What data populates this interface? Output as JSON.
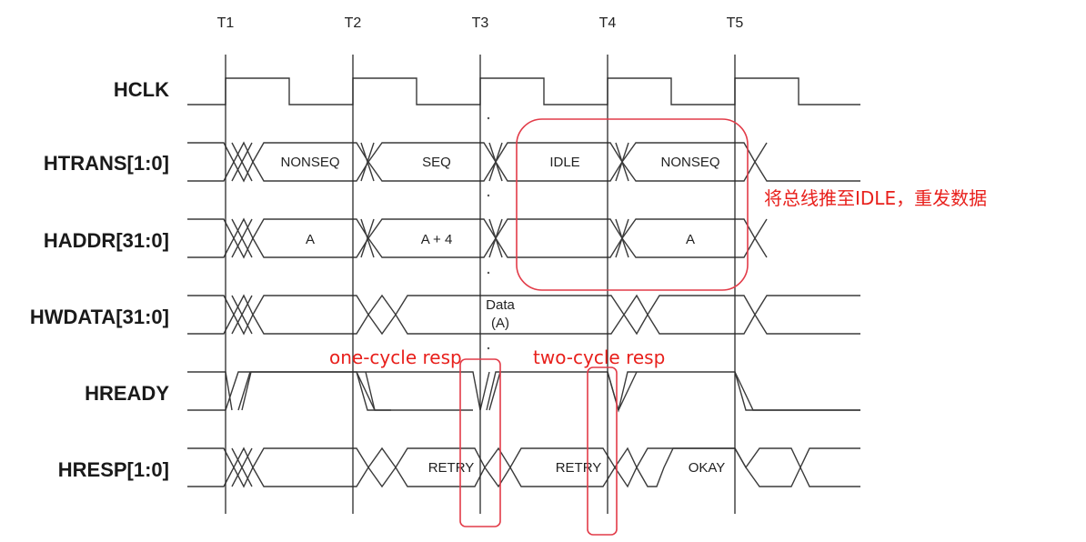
{
  "time_markers": [
    "T1",
    "T2",
    "T3",
    "T4",
    "T5"
  ],
  "signals": {
    "hclk": "HCLK",
    "htrans": "HTRANS[1:0]",
    "haddr": "HADDR[31:0]",
    "hwdata": "HWDATA[31:0]",
    "hready": "HREADY",
    "hresp": "HRESP[1:0]"
  },
  "values": {
    "htrans": [
      "NONSEQ",
      "SEQ",
      "IDLE",
      "NONSEQ"
    ],
    "haddr": [
      "A",
      "A + 4",
      "A"
    ],
    "hwdata_line1": "Data",
    "hwdata_line2": "(A)",
    "hresp": [
      "RETRY",
      "RETRY",
      "OKAY"
    ]
  },
  "annotations": {
    "bus_idle_note": "将总线推至IDLE，重发数据",
    "one_cycle": "one-cycle resp",
    "two_cycle": "two-cycle resp"
  },
  "colors": {
    "waveform": "#3a3a3a",
    "highlight": "#e23b48",
    "annotation_text": "#e8201c"
  }
}
